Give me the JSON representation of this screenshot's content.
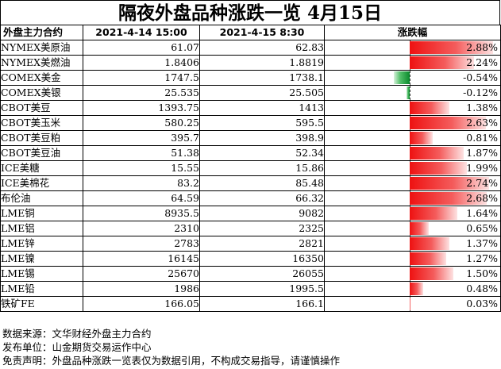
{
  "title": "隔夜外盘品种涨跌一览 4月15日",
  "header": {
    "name": "外盘主力合约",
    "prev": "2021-4-14 15:00",
    "curr": "2021-4-15 8:30",
    "change": "涨跌幅"
  },
  "rows": [
    {
      "name": "NYMEX美原油",
      "prev": "61.07",
      "curr": "62.83",
      "change": "2.88%",
      "value": 2.88
    },
    {
      "name": "NYMEX美燃油",
      "prev": "1.8406",
      "curr": "1.8819",
      "change": "2.24%",
      "value": 2.24
    },
    {
      "name": "COMEX美金",
      "prev": "1747.5",
      "curr": "1738.1",
      "change": "-0.54%",
      "value": -0.54
    },
    {
      "name": "COMEX美银",
      "prev": "25.535",
      "curr": "25.505",
      "change": "-0.12%",
      "value": -0.12
    },
    {
      "name": "CBOT美豆",
      "prev": "1393.75",
      "curr": "1413",
      "change": "1.38%",
      "value": 1.38
    },
    {
      "name": "CBOT美玉米",
      "prev": "580.25",
      "curr": "595.5",
      "change": "2.63%",
      "value": 2.63
    },
    {
      "name": "CBOT美豆粕",
      "prev": "395.7",
      "curr": "398.9",
      "change": "0.81%",
      "value": 0.81
    },
    {
      "name": "CBOT美豆油",
      "prev": "51.38",
      "curr": "52.34",
      "change": "1.87%",
      "value": 1.87
    },
    {
      "name": "ICE美糖",
      "prev": "15.55",
      "curr": "15.86",
      "change": "1.99%",
      "value": 1.99
    },
    {
      "name": "ICE美棉花",
      "prev": "83.2",
      "curr": "85.48",
      "change": "2.74%",
      "value": 2.74
    },
    {
      "name": "布伦油",
      "prev": "64.59",
      "curr": "66.32",
      "change": "2.68%",
      "value": 2.68
    },
    {
      "name": "LME铜",
      "prev": "8935.5",
      "curr": "9082",
      "change": "1.64%",
      "value": 1.64
    },
    {
      "name": "LME铝",
      "prev": "2310",
      "curr": "2325",
      "change": "0.65%",
      "value": 0.65
    },
    {
      "name": "LME锌",
      "prev": "2783",
      "curr": "2821",
      "change": "1.37%",
      "value": 1.37
    },
    {
      "name": "LME镍",
      "prev": "16145",
      "curr": "16350",
      "change": "1.27%",
      "value": 1.27
    },
    {
      "name": "LME锡",
      "prev": "25670",
      "curr": "26055",
      "change": "1.50%",
      "value": 1.5
    },
    {
      "name": "LME铅",
      "prev": "1986",
      "curr": "1995.5",
      "change": "0.48%",
      "value": 0.48
    },
    {
      "name": "铁矿FE",
      "prev": "166.05",
      "curr": "166.1",
      "change": "0.03%",
      "value": 0.03
    }
  ],
  "colors": {
    "up": "#ee1111",
    "down": "#0a8a2c"
  },
  "notes": [
    "数据来源：文华财经外盘主力合约",
    "发布单位：山金期货交易运作中心",
    "免责声明：外盘品种涨跌一览表仅为数据引用，不构成交易指导，请谨慎操作"
  ]
}
